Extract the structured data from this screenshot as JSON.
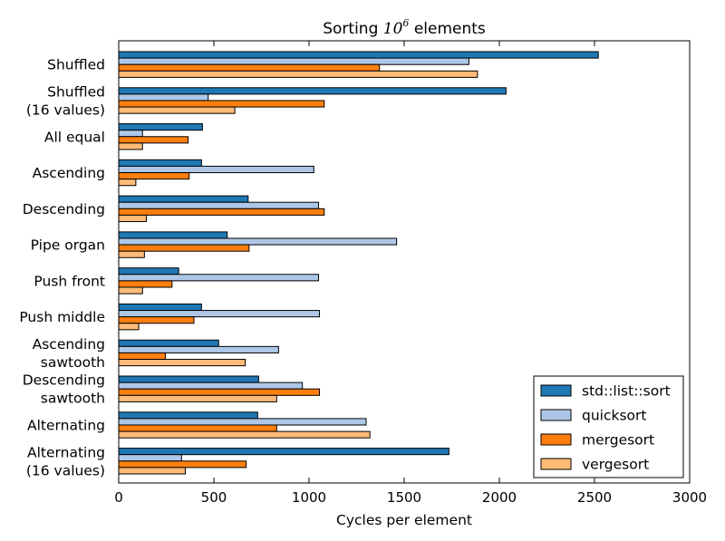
{
  "chart_data": {
    "type": "bar",
    "orientation": "horizontal",
    "title": "Sorting 10⁶ elements",
    "title_text": "Sorting",
    "title_math": "10",
    "title_exp": "6",
    "title_suffix": "elements",
    "xlabel": "Cycles per element",
    "ylabel": "",
    "xlim": [
      0,
      3000
    ],
    "xticks": [
      0,
      500,
      1000,
      1500,
      2000,
      2500,
      3000
    ],
    "grid": false,
    "legend_position": "lower-right",
    "categories": [
      [
        "Shuffled"
      ],
      [
        "Shuffled",
        "(16 values)"
      ],
      [
        "All equal"
      ],
      [
        "Ascending"
      ],
      [
        "Descending"
      ],
      [
        "Pipe organ"
      ],
      [
        "Push front"
      ],
      [
        "Push middle"
      ],
      [
        "Ascending",
        "sawtooth"
      ],
      [
        "Descending",
        "sawtooth"
      ],
      [
        "Alternating"
      ],
      [
        "Alternating",
        "(16 values)"
      ]
    ],
    "series": [
      {
        "name": "std::list::sort",
        "color": "#1f77b4",
        "values": [
          2520,
          2035,
          440,
          435,
          680,
          570,
          315,
          435,
          525,
          735,
          730,
          1735
        ]
      },
      {
        "name": "quicksort",
        "color": "#aec7e8",
        "values": [
          1840,
          470,
          125,
          1025,
          1050,
          1460,
          1050,
          1055,
          840,
          965,
          1300,
          330
        ]
      },
      {
        "name": "mergesort",
        "color": "#ff7f0e",
        "values": [
          1370,
          1080,
          365,
          370,
          1080,
          685,
          280,
          395,
          245,
          1055,
          830,
          670
        ]
      },
      {
        "name": "vergesort",
        "color": "#ffbb78",
        "values": [
          1885,
          610,
          125,
          90,
          145,
          135,
          125,
          105,
          665,
          830,
          1320,
          350
        ]
      }
    ]
  }
}
